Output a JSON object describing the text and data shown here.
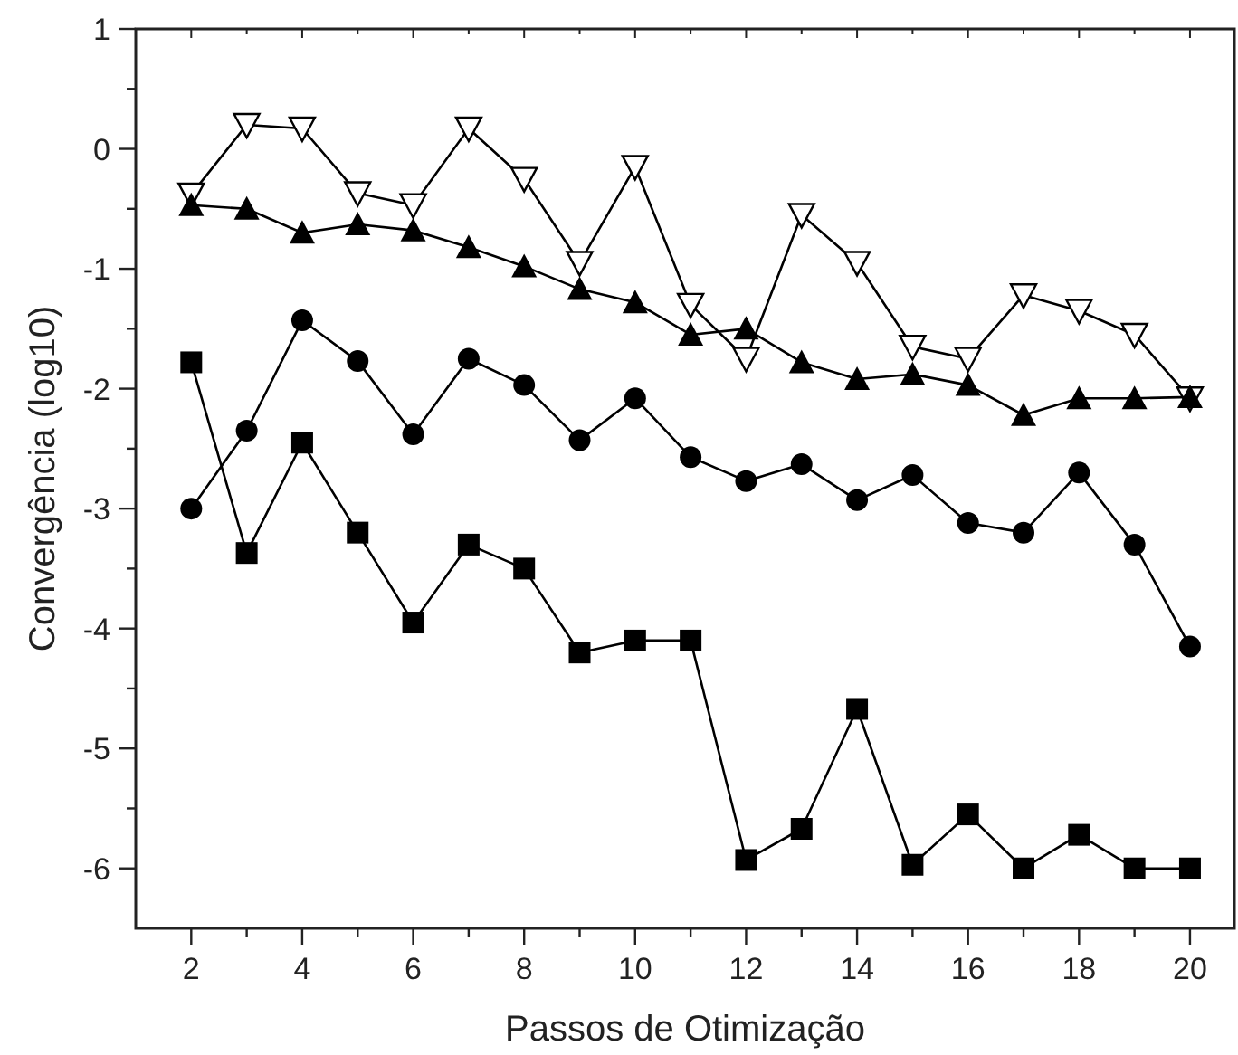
{
  "chart_data": {
    "type": "line",
    "xlabel": "Passos de Otimização",
    "ylabel": "Convergência (log10)",
    "x": [
      2,
      3,
      4,
      5,
      6,
      7,
      8,
      9,
      10,
      11,
      12,
      13,
      14,
      15,
      16,
      17,
      18,
      19,
      20
    ],
    "xlim": [
      1,
      20.8
    ],
    "ylim": [
      -6.5,
      1
    ],
    "xticks": [
      2,
      {
        "value": 3,
        "label": null
      },
      4,
      {
        "value": 5,
        "label": null
      },
      6,
      {
        "value": 7,
        "label": null
      },
      8,
      {
        "value": 9,
        "label": null
      },
      10,
      {
        "value": 11,
        "label": null
      },
      12,
      {
        "value": 13,
        "label": null
      },
      14,
      {
        "value": 15,
        "label": null
      },
      16,
      {
        "value": 17,
        "label": null
      },
      18,
      {
        "value": 19,
        "label": null
      },
      20
    ],
    "yticks": [
      1,
      {
        "value": 0.5,
        "label": null
      },
      0,
      {
        "value": -0.5,
        "label": null
      },
      -1,
      {
        "value": -1.5,
        "label": null
      },
      -2,
      {
        "value": -2.5,
        "label": null
      },
      -3,
      {
        "value": -3.5,
        "label": null
      },
      -4,
      {
        "value": -4.5,
        "label": null
      },
      -5,
      {
        "value": -5.5,
        "label": null
      },
      -6
    ],
    "grid": false,
    "line_style": "solid",
    "series": [
      {
        "color": "#000000",
        "marker": "triangle_down",
        "values": [
          -0.38,
          0.2,
          0.17,
          -0.37,
          -0.47,
          0.17,
          -0.25,
          -0.95,
          -0.15,
          -1.3,
          -1.75,
          -0.55,
          -0.95,
          -1.65,
          -1.75,
          -1.22,
          -1.35,
          -1.55,
          -2.08
        ]
      },
      {
        "color": "#000000",
        "marker": "triangle",
        "values": [
          -0.47,
          -0.5,
          -0.7,
          -0.63,
          -0.68,
          -0.82,
          -0.98,
          -1.17,
          -1.28,
          -1.55,
          -1.5,
          -1.78,
          -1.92,
          -1.88,
          -1.97,
          -2.22,
          -2.08,
          -2.08,
          -2.07
        ]
      },
      {
        "color": "#000000",
        "marker": "circle",
        "values": [
          -3.0,
          -2.35,
          -1.43,
          -1.77,
          -2.38,
          -1.75,
          -1.97,
          -2.43,
          -2.08,
          -2.57,
          -2.77,
          -2.63,
          -2.93,
          -2.72,
          -3.12,
          -3.2,
          -2.7,
          -3.3,
          -4.15
        ]
      },
      {
        "color": "#000000",
        "marker": "square",
        "values": [
          -1.78,
          -3.37,
          -2.45,
          -3.2,
          -3.95,
          -3.3,
          -3.5,
          -4.2,
          -4.1,
          -4.1,
          -5.93,
          -5.67,
          -4.67,
          -5.97,
          -5.55,
          -6.0,
          -5.72,
          -6.0,
          -6.0
        ]
      }
    ]
  }
}
